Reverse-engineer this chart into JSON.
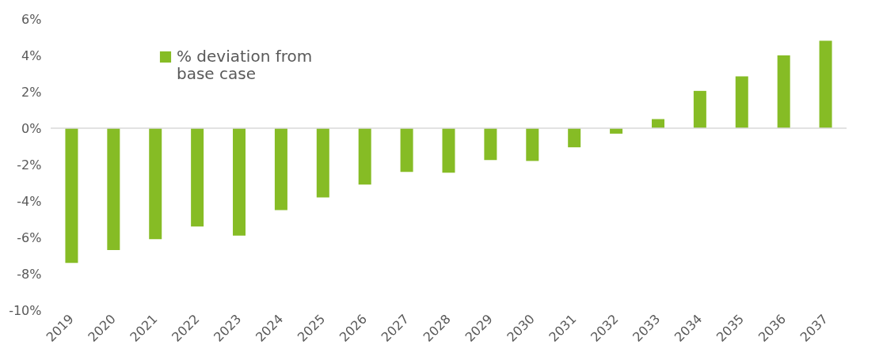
{
  "chart_data": {
    "type": "bar",
    "categories": [
      "2019",
      "2020",
      "2021",
      "2022",
      "2023",
      "2024",
      "2025",
      "2026",
      "2027",
      "2028",
      "2029",
      "2030",
      "2031",
      "2032",
      "2033",
      "2034",
      "2035",
      "2036",
      "2037"
    ],
    "series": [
      {
        "name": "% deviation from base case",
        "color": "#86bc25",
        "values": [
          -7.4,
          -6.7,
          -6.1,
          -5.4,
          -5.9,
          -4.5,
          -3.8,
          -3.1,
          -2.4,
          -2.45,
          -1.75,
          -1.8,
          -1.05,
          -0.3,
          0.5,
          2.05,
          2.85,
          4.0,
          4.8
        ]
      }
    ],
    "ylim": [
      -10,
      6
    ],
    "yticks": [
      {
        "value": -10,
        "label": "-10%"
      },
      {
        "value": -8,
        "label": "-8%"
      },
      {
        "value": -6,
        "label": "-6%"
      },
      {
        "value": -4,
        "label": "-4%"
      },
      {
        "value": -2,
        "label": "-2%"
      },
      {
        "value": 0,
        "label": "0%"
      },
      {
        "value": 2,
        "label": "2%"
      },
      {
        "value": 4,
        "label": "4%"
      },
      {
        "value": 6,
        "label": "6%"
      }
    ],
    "ref_lines": [
      {
        "axis": "y",
        "value": 0,
        "color": "#d9d9d9"
      }
    ],
    "legend": "top left",
    "grid": false
  }
}
